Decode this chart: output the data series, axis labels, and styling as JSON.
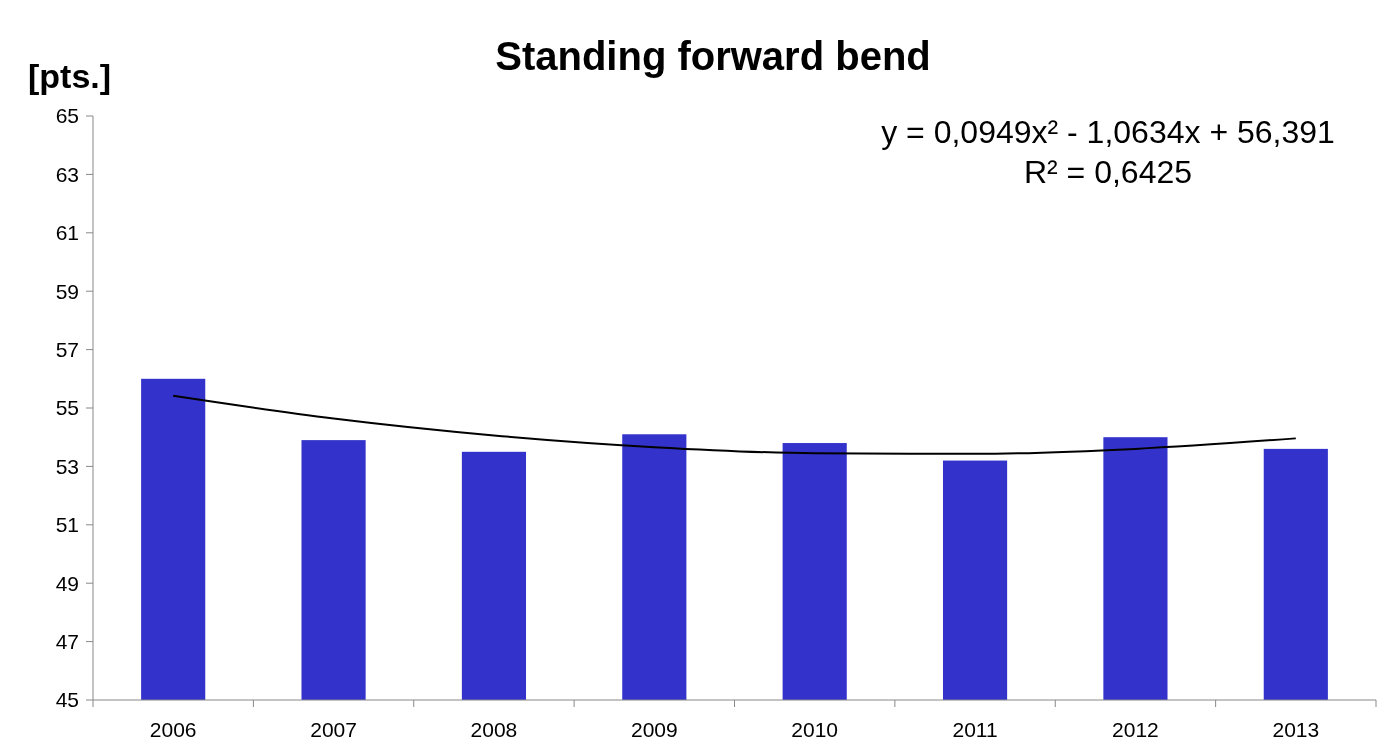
{
  "chart_data": {
    "type": "bar",
    "title": "Standing forward bend",
    "ylabel": "[pts.]",
    "categories": [
      "2006",
      "2007",
      "2008",
      "2009",
      "2010",
      "2011",
      "2012",
      "2013"
    ],
    "series": [
      {
        "color": "#3333cc",
        "values": [
          56.0,
          53.9,
          53.5,
          54.1,
          53.8,
          53.2,
          54.0,
          53.6
        ]
      },
      {
        "type": "line",
        "color": "#000000",
        "values": [
          55.42,
          54.64,
          54.06,
          53.66,
          53.45,
          53.43,
          53.6,
          53.96
        ]
      }
    ],
    "ylim": [
      45,
      65
    ],
    "yticks": [
      45,
      47,
      49,
      51,
      53,
      55,
      57,
      59,
      61,
      63,
      65
    ],
    "annotations": [
      "y = 0,0949x² - 1,0634x + 56,391",
      "R² = 0,6425"
    ]
  }
}
